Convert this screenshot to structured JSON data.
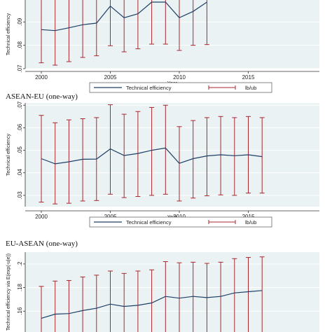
{
  "colors": {
    "line": "#1f3f66",
    "bars": "#a8272e",
    "panel": "#eaf2f3",
    "grid": "#ffffff",
    "axis": "#333333"
  },
  "legend": {
    "line_label": "Technical efficiency",
    "bar_label": "lb/ub"
  },
  "chart_data": [
    {
      "type": "line",
      "title": "",
      "xlabel": "Year",
      "ylabel": "Technical efficiency",
      "x": [
        2000,
        2001,
        2002,
        2003,
        2004,
        2005,
        2006,
        2007,
        2008,
        2009,
        2010,
        2011,
        2012
      ],
      "ylim": [
        0.07,
        0.1
      ],
      "yticks": [
        ".07",
        ".08",
        ".09"
      ],
      "xticks": [
        "2000",
        "2005",
        "2010",
        "2015"
      ],
      "series": [
        {
          "name": "Technical efficiency",
          "values": [
            0.0867,
            0.0863,
            0.0875,
            0.0888,
            0.0895,
            0.0968,
            0.0918,
            0.0935,
            0.0985,
            0.0985,
            0.0918,
            0.0945,
            0.0985
          ]
        },
        {
          "name": "lb",
          "values": [
            0.0725,
            0.0715,
            0.073,
            0.0748,
            0.0755,
            0.0798,
            0.0772,
            0.0785,
            0.0805,
            0.0805,
            0.0778,
            0.08,
            0.0803
          ]
        },
        {
          "name": "ub",
          "values": [
            0.1,
            0.1,
            0.1,
            0.1,
            0.1,
            0.1,
            0.1,
            0.1,
            0.1,
            0.1,
            0.1,
            0.1,
            0.1
          ]
        }
      ]
    },
    {
      "type": "line",
      "title": "ASEAN-EU (one-way)",
      "xlabel": "Year",
      "ylabel": "Technical efficiency",
      "x": [
        2000,
        2001,
        2002,
        2003,
        2004,
        2005,
        2006,
        2007,
        2008,
        2009,
        2010,
        2011,
        2012,
        2013,
        2014,
        2015,
        2016
      ],
      "ylim": [
        0.025,
        0.071
      ],
      "yticks": [
        ".03",
        ".04",
        ".05",
        ".06",
        ".07"
      ],
      "xticks": [
        "2000",
        "2005",
        "2010",
        "2015"
      ],
      "series": [
        {
          "name": "Technical efficiency",
          "values": [
            0.0463,
            0.044,
            0.0449,
            0.046,
            0.0461,
            0.0506,
            0.0477,
            0.0486,
            0.05,
            0.051,
            0.0442,
            0.0463,
            0.0475,
            0.048,
            0.0476,
            0.048,
            0.0472
          ]
        },
        {
          "name": "lb",
          "values": [
            0.027,
            0.0262,
            0.0265,
            0.0275,
            0.0277,
            0.0305,
            0.029,
            0.0295,
            0.03,
            0.0305,
            0.0275,
            0.0288,
            0.0298,
            0.0302,
            0.03,
            0.031,
            0.031
          ]
        },
        {
          "name": "ub",
          "values": [
            0.0655,
            0.0622,
            0.0635,
            0.064,
            0.0645,
            0.0702,
            0.066,
            0.0672,
            0.069,
            0.07,
            0.0605,
            0.0632,
            0.0645,
            0.065,
            0.0645,
            0.065,
            0.0645
          ]
        }
      ]
    },
    {
      "type": "line",
      "title": "EU-ASEAN (one-way)",
      "xlabel": "",
      "ylabel": "Technical efficiency via E(exp(-u|e))",
      "x": [
        2000,
        2001,
        2002,
        2003,
        2004,
        2005,
        2006,
        2007,
        2008,
        2009,
        2010,
        2011,
        2012,
        2013,
        2014,
        2015,
        2016
      ],
      "ylim": [
        0.14,
        0.21
      ],
      "yticks": [
        ".14",
        ".16",
        ".18",
        ".2"
      ],
      "series": [
        {
          "name": "Technical efficiency",
          "values": [
            0.154,
            0.1575,
            0.158,
            0.1605,
            0.1625,
            0.166,
            0.164,
            0.165,
            0.167,
            0.1725,
            0.171,
            0.1725,
            0.1715,
            0.1725,
            0.1755,
            0.1765,
            0.1775
          ]
        },
        {
          "name": "lb",
          "values": [
            0.14,
            0.14,
            0.14,
            0.14,
            0.14,
            0.14,
            0.14,
            0.14,
            0.14,
            0.14,
            0.14,
            0.14,
            0.14,
            0.14,
            0.14,
            0.14,
            0.14
          ]
        },
        {
          "name": "ub",
          "values": [
            0.181,
            0.1855,
            0.186,
            0.189,
            0.1905,
            0.194,
            0.192,
            0.194,
            0.195,
            0.202,
            0.201,
            0.2015,
            0.2005,
            0.2015,
            0.2045,
            0.2055,
            0.206
          ]
        }
      ]
    }
  ]
}
